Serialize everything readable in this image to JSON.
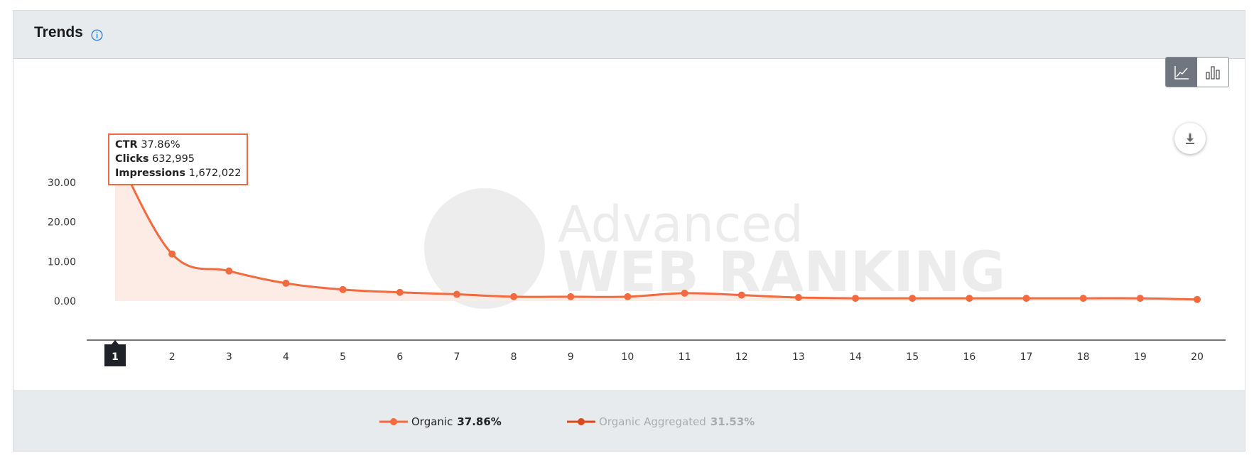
{
  "header": {
    "title": "Trends"
  },
  "colors": {
    "series_primary": "#f26a3d",
    "series_secondary": "#d64a1c",
    "area_fill": "#fde9e3",
    "active_x_label": "#1f2229"
  },
  "icons": {
    "info": "info-circle-icon",
    "line_chart_toggle": "line-chart-icon",
    "bar_chart_toggle": "bar-chart-icon",
    "download": "download-icon"
  },
  "watermark": {
    "line1": "Advanced",
    "line2": "WEB RANKING"
  },
  "tooltip": {
    "ctr_label": "CTR",
    "ctr_value": "37.86%",
    "clicks_label": "Clicks",
    "clicks_value": "632,995",
    "impressions_label": "Impressions",
    "impressions_value": "1,672,022"
  },
  "legend": [
    {
      "label": "Organic",
      "value": "37.86%"
    },
    {
      "label": "Organic Aggregated",
      "value": "31.53%"
    }
  ],
  "chart_data": {
    "type": "line",
    "x": [
      1,
      2,
      3,
      4,
      5,
      6,
      7,
      8,
      9,
      10,
      11,
      12,
      13,
      14,
      15,
      16,
      17,
      18,
      19,
      20
    ],
    "series": [
      {
        "name": "Organic",
        "values": [
          37.86,
          11.9,
          7.6,
          4.5,
          2.9,
          2.2,
          1.7,
          1.1,
          1.1,
          1.1,
          2.0,
          1.5,
          0.9,
          0.7,
          0.7,
          0.7,
          0.7,
          0.7,
          0.7,
          0.4
        ]
      }
    ],
    "y_ticks": [
      "30.00",
      "20.00",
      "10.00",
      "0.00"
    ],
    "ylim": [
      0,
      40
    ],
    "x_ticks": [
      "1",
      "2",
      "3",
      "4",
      "5",
      "6",
      "7",
      "8",
      "9",
      "10",
      "11",
      "12",
      "13",
      "14",
      "15",
      "16",
      "17",
      "18",
      "19",
      "20"
    ],
    "highlighted_x": "1",
    "grid": false,
    "legend_position": "bottom"
  }
}
